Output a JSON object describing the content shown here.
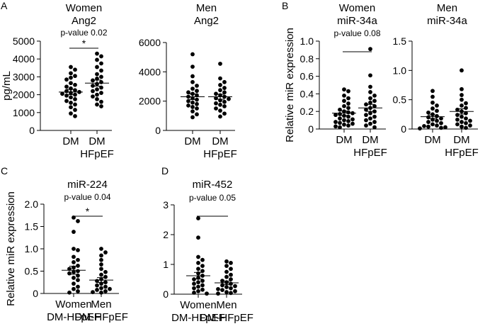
{
  "panel_labels": [
    "A",
    "B",
    "C",
    "D"
  ],
  "chart_data": [
    {
      "id": "A1",
      "panel": "A",
      "type": "scatter",
      "title_lines": [
        "Women",
        "Ang2"
      ],
      "ylabel": "pg/mL",
      "ylim": [
        0,
        5000
      ],
      "yticks": [
        0,
        1000,
        2000,
        3000,
        4000,
        5000
      ],
      "categories": [
        [
          "DM"
        ],
        [
          "DM",
          "HFpEF"
        ]
      ],
      "annotation": "p-value 0.02",
      "significance": "*",
      "groups": [
        {
          "mean": 2150,
          "sem": 150,
          "values": [
            3550,
            3400,
            3200,
            3050,
            2950,
            2850,
            2650,
            2550,
            2450,
            2350,
            2250,
            2200,
            2150,
            2100,
            2050,
            2000,
            1950,
            1850,
            1750,
            1650,
            1550,
            1450,
            1300,
            1150,
            950,
            800
          ]
        },
        {
          "mean": 2650,
          "sem": 170,
          "values": [
            4300,
            4150,
            3950,
            3750,
            3550,
            3350,
            3150,
            3000,
            2900,
            2800,
            2700,
            2600,
            2500,
            2400,
            2300,
            2200,
            2100,
            2000,
            1900,
            1750,
            1600,
            1450,
            1350
          ]
        }
      ]
    },
    {
      "id": "A2",
      "panel": "A",
      "type": "scatter",
      "title_lines": [
        "Men",
        "Ang2"
      ],
      "ylabel": "",
      "ylim": [
        0,
        6000
      ],
      "yticks": [
        0,
        2000,
        4000,
        6000
      ],
      "categories": [
        [
          "DM"
        ],
        [
          "DM",
          "HFpEF"
        ]
      ],
      "annotation": "",
      "significance": "",
      "groups": [
        {
          "mean": 2300,
          "sem": 190,
          "values": [
            5200,
            4350,
            3700,
            3300,
            3050,
            2850,
            2700,
            2600,
            2500,
            2400,
            2300,
            2200,
            2100,
            2000,
            1900,
            1800,
            1700,
            1600,
            1500,
            1300,
            1100,
            900
          ]
        },
        {
          "mean": 2300,
          "sem": 170,
          "values": [
            4550,
            3550,
            3300,
            3100,
            2900,
            2750,
            2600,
            2500,
            2400,
            2300,
            2200,
            2150,
            2050,
            1950,
            1850,
            1750,
            1650,
            1500,
            1350,
            1150,
            950
          ]
        }
      ]
    },
    {
      "id": "B1",
      "panel": "B",
      "type": "scatter",
      "title_lines": [
        "Women",
        "miR-34a"
      ],
      "ylabel": "Relative miR expression",
      "ylim": [
        0,
        1.0
      ],
      "yticks": [
        0,
        0.2,
        0.4,
        0.6,
        0.8,
        1.0
      ],
      "ytick_labels": [
        "0",
        "0.2",
        "0.4",
        "0.6",
        "0.8",
        "1.0"
      ],
      "categories": [
        [
          "DM"
        ],
        [
          "DM",
          "HFpEF"
        ]
      ],
      "annotation": "p-value 0.08",
      "significance": "",
      "groups": [
        {
          "mean": 0.18,
          "sem": 0.025,
          "values": [
            0.45,
            0.43,
            0.38,
            0.35,
            0.32,
            0.29,
            0.26,
            0.24,
            0.22,
            0.2,
            0.19,
            0.18,
            0.17,
            0.16,
            0.15,
            0.14,
            0.12,
            0.11,
            0.1,
            0.09,
            0.08,
            0.07,
            0.06,
            0.05,
            0.04,
            0.03,
            0.02
          ]
        },
        {
          "mean": 0.24,
          "sem": 0.04,
          "values": [
            0.91,
            0.61,
            0.48,
            0.42,
            0.38,
            0.35,
            0.32,
            0.3,
            0.28,
            0.26,
            0.24,
            0.22,
            0.2,
            0.18,
            0.16,
            0.14,
            0.12,
            0.1,
            0.08,
            0.06,
            0.04,
            0.02
          ]
        }
      ]
    },
    {
      "id": "B2",
      "panel": "B",
      "type": "scatter",
      "title_lines": [
        "Men",
        "miR-34a"
      ],
      "ylabel": "",
      "ylim": [
        0,
        1.5
      ],
      "yticks": [
        0,
        0.5,
        1.0,
        1.5
      ],
      "ytick_labels": [
        "0",
        "0.5",
        "1.0",
        "1.5"
      ],
      "categories": [
        [
          "DM"
        ],
        [
          "DM",
          "HFpEF"
        ]
      ],
      "annotation": "",
      "significance": "",
      "groups": [
        {
          "mean": 0.21,
          "sem": 0.03,
          "values": [
            0.65,
            0.55,
            0.45,
            0.4,
            0.35,
            0.31,
            0.28,
            0.25,
            0.22,
            0.2,
            0.18,
            0.16,
            0.14,
            0.12,
            0.1,
            0.08,
            0.06,
            0.05,
            0.04,
            0.03,
            0.02,
            0.01
          ]
        },
        {
          "mean": 0.3,
          "sem": 0.045,
          "values": [
            1.0,
            0.68,
            0.58,
            0.5,
            0.44,
            0.4,
            0.36,
            0.33,
            0.3,
            0.27,
            0.24,
            0.21,
            0.18,
            0.16,
            0.14,
            0.12,
            0.1,
            0.08,
            0.06,
            0.04,
            0.02
          ]
        }
      ]
    },
    {
      "id": "C",
      "panel": "C",
      "type": "scatter",
      "title_lines": [
        "miR-224"
      ],
      "ylabel": "Relative miR expression",
      "ylim": [
        0,
        2.0
      ],
      "yticks": [
        0,
        0.5,
        1.0,
        1.5,
        2.0
      ],
      "ytick_labels": [
        "0",
        "0.5",
        "1.0",
        "1.5",
        "2.0"
      ],
      "categories": [
        [
          "Women",
          "DM-HFpEF"
        ],
        [
          "Men",
          "DM-HFpEF"
        ]
      ],
      "annotation": "p-value 0.04",
      "significance": "*",
      "groups": [
        {
          "mean": 0.52,
          "sem": 0.09,
          "values": [
            1.7,
            1.62,
            1.38,
            1.0,
            0.97,
            0.82,
            0.75,
            0.7,
            0.62,
            0.58,
            0.55,
            0.5,
            0.48,
            0.45,
            0.4,
            0.35,
            0.3,
            0.22,
            0.15,
            0.1,
            0.05,
            0.02
          ]
        },
        {
          "mean": 0.3,
          "sem": 0.055,
          "values": [
            1.0,
            0.92,
            0.85,
            0.75,
            0.65,
            0.55,
            0.48,
            0.42,
            0.37,
            0.32,
            0.28,
            0.25,
            0.22,
            0.18,
            0.15,
            0.12,
            0.1,
            0.08,
            0.05,
            0.03,
            0.02
          ]
        }
      ]
    },
    {
      "id": "D",
      "panel": "D",
      "type": "scatter",
      "title_lines": [
        "miR-452"
      ],
      "ylabel": "",
      "ylim": [
        0,
        3
      ],
      "yticks": [
        0,
        1,
        2,
        3
      ],
      "ytick_labels": [
        "0",
        "1",
        "2",
        "3"
      ],
      "categories": [
        [
          "Women",
          "DM-HFpEF"
        ],
        [
          "Men",
          "DM-HFpEF"
        ]
      ],
      "annotation": "p-value 0.05",
      "significance": "",
      "groups": [
        {
          "mean": 0.62,
          "sem": 0.11,
          "values": [
            2.55,
            1.9,
            1.25,
            1.15,
            1.05,
            0.95,
            0.85,
            0.78,
            0.7,
            0.62,
            0.55,
            0.5,
            0.45,
            0.4,
            0.35,
            0.3,
            0.25,
            0.2,
            0.15,
            0.1,
            0.05,
            0.02
          ]
        },
        {
          "mean": 0.38,
          "sem": 0.06,
          "values": [
            1.1,
            1.05,
            0.95,
            0.85,
            0.75,
            0.65,
            0.58,
            0.5,
            0.45,
            0.4,
            0.35,
            0.3,
            0.27,
            0.24,
            0.2,
            0.17,
            0.14,
            0.1,
            0.07,
            0.04,
            0.02
          ]
        }
      ]
    }
  ]
}
